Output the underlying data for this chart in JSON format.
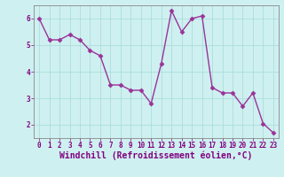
{
  "x": [
    0,
    1,
    2,
    3,
    4,
    5,
    6,
    7,
    8,
    9,
    10,
    11,
    12,
    13,
    14,
    15,
    16,
    17,
    18,
    19,
    20,
    21,
    22,
    23
  ],
  "y": [
    6.0,
    5.2,
    5.2,
    5.4,
    5.2,
    4.8,
    4.6,
    3.5,
    3.5,
    3.3,
    3.3,
    2.8,
    4.3,
    6.3,
    5.5,
    6.0,
    6.1,
    3.4,
    3.2,
    3.2,
    2.7,
    3.2,
    2.05,
    1.7
  ],
  "line_color": "#993399",
  "marker": "D",
  "marker_size": 2.5,
  "bg_color": "#cff0f0",
  "grid_color": "#aadddd",
  "xlabel": "Windchill (Refroidissement éolien,°C)",
  "xlim": [
    -0.5,
    23.5
  ],
  "ylim": [
    1.5,
    6.5
  ],
  "yticks": [
    2,
    3,
    4,
    5,
    6
  ],
  "xticks": [
    0,
    1,
    2,
    3,
    4,
    5,
    6,
    7,
    8,
    9,
    10,
    11,
    12,
    13,
    14,
    15,
    16,
    17,
    18,
    19,
    20,
    21,
    22,
    23
  ],
  "font_color": "#800080",
  "tick_fontsize": 5.5,
  "label_fontsize": 7.0,
  "line_width": 1.0
}
